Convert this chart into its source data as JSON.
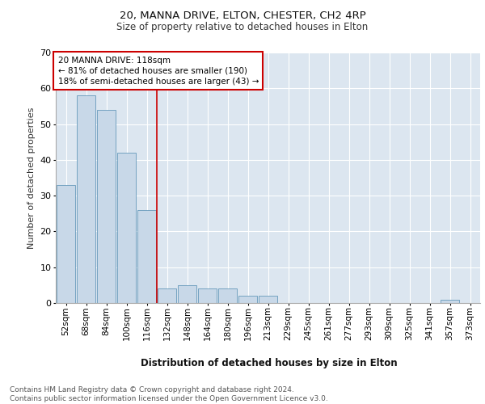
{
  "title": "20, MANNA DRIVE, ELTON, CHESTER, CH2 4RP",
  "subtitle": "Size of property relative to detached houses in Elton",
  "xlabel": "Distribution of detached houses by size in Elton",
  "ylabel": "Number of detached properties",
  "footnote": "Contains HM Land Registry data © Crown copyright and database right 2024.\nContains public sector information licensed under the Open Government Licence v3.0.",
  "bar_labels": [
    "52sqm",
    "68sqm",
    "84sqm",
    "100sqm",
    "116sqm",
    "132sqm",
    "148sqm",
    "164sqm",
    "180sqm",
    "196sqm",
    "213sqm",
    "229sqm",
    "245sqm",
    "261sqm",
    "277sqm",
    "293sqm",
    "309sqm",
    "325sqm",
    "341sqm",
    "357sqm",
    "373sqm"
  ],
  "bar_values": [
    33,
    58,
    54,
    42,
    26,
    4,
    5,
    4,
    4,
    2,
    2,
    0,
    0,
    0,
    0,
    0,
    0,
    0,
    0,
    1,
    0
  ],
  "bar_color": "#c8d8e8",
  "bar_edgecolor": "#6699bb",
  "background_color": "#dce6f0",
  "grid_color": "#ffffff",
  "vline_x": 4.5,
  "vline_color": "#cc0000",
  "annotation_text": "20 MANNA DRIVE: 118sqm\n← 81% of detached houses are smaller (190)\n18% of semi-detached houses are larger (43) →",
  "annotation_box_color": "#ffffff",
  "annotation_box_edgecolor": "#cc0000",
  "ylim": [
    0,
    70
  ],
  "yticks": [
    0,
    10,
    20,
    30,
    40,
    50,
    60,
    70
  ]
}
